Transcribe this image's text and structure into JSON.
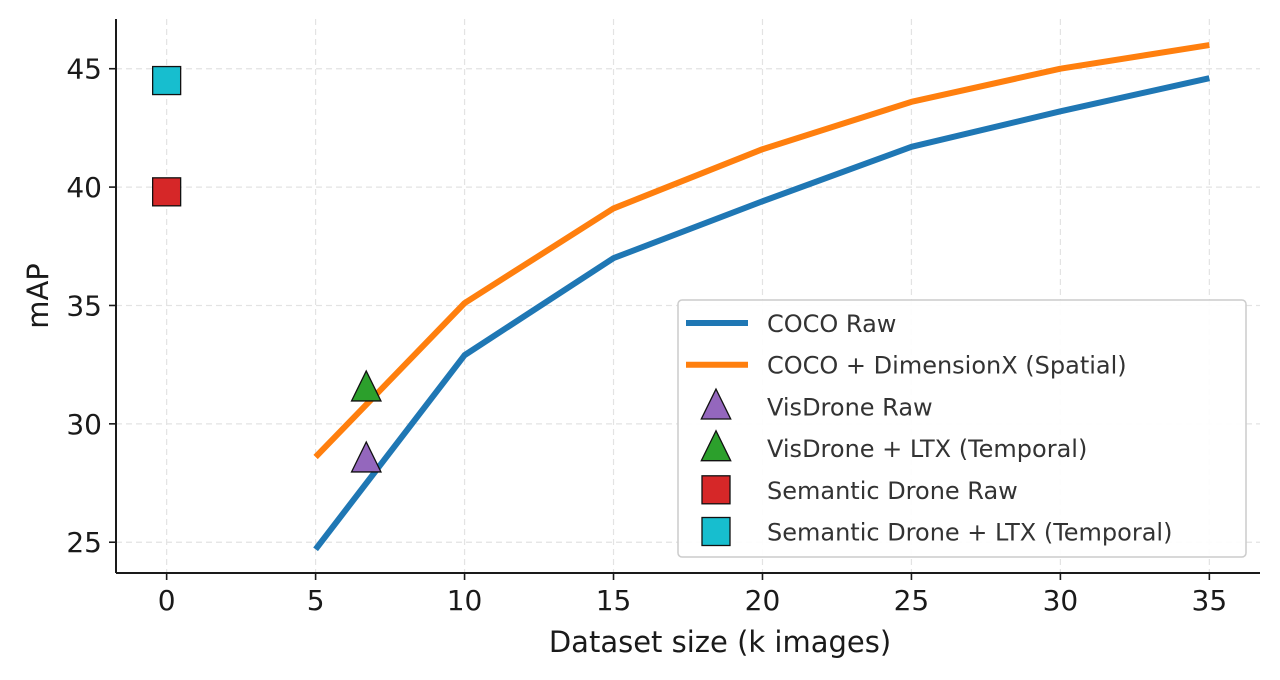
{
  "chart_data": {
    "type": "line",
    "title": "",
    "xlabel": "Dataset size (k images)",
    "ylabel": "mAP",
    "xlim": [
      -1.7,
      36.7
    ],
    "ylim": [
      23.7,
      47.1
    ],
    "xticks": [
      0,
      5,
      10,
      15,
      20,
      25,
      30,
      35
    ],
    "yticks": [
      25,
      30,
      35,
      40,
      45
    ],
    "grid": true,
    "legend_position": "lower-right",
    "series": [
      {
        "name": "COCO Raw",
        "kind": "line",
        "color": "#1f77b4",
        "x": [
          5,
          10,
          15,
          20,
          25,
          30,
          35
        ],
        "y": [
          24.7,
          32.9,
          37.0,
          39.4,
          41.7,
          43.2,
          44.6
        ]
      },
      {
        "name": "COCO + DimensionX (Spatial)",
        "kind": "line",
        "color": "#ff7f0e",
        "x": [
          5,
          10,
          15,
          20,
          25,
          30,
          35
        ],
        "y": [
          28.6,
          35.1,
          39.1,
          41.6,
          43.6,
          45.0,
          46.0
        ]
      },
      {
        "name": "VisDrone Raw",
        "kind": "marker",
        "marker": "triangle",
        "color": "#9467bd",
        "x": [
          6.7
        ],
        "y": [
          28.5
        ]
      },
      {
        "name": "VisDrone + LTX (Temporal)",
        "kind": "marker",
        "marker": "triangle",
        "color": "#2ca02c",
        "x": [
          6.7
        ],
        "y": [
          31.5
        ]
      },
      {
        "name": "Semantic Drone Raw",
        "kind": "marker",
        "marker": "square",
        "color": "#d62728",
        "x": [
          0
        ],
        "y": [
          39.8
        ]
      },
      {
        "name": "Semantic Drone + LTX (Temporal)",
        "kind": "marker",
        "marker": "square",
        "color": "#17becf",
        "x": [
          0
        ],
        "y": [
          44.5
        ]
      }
    ]
  }
}
